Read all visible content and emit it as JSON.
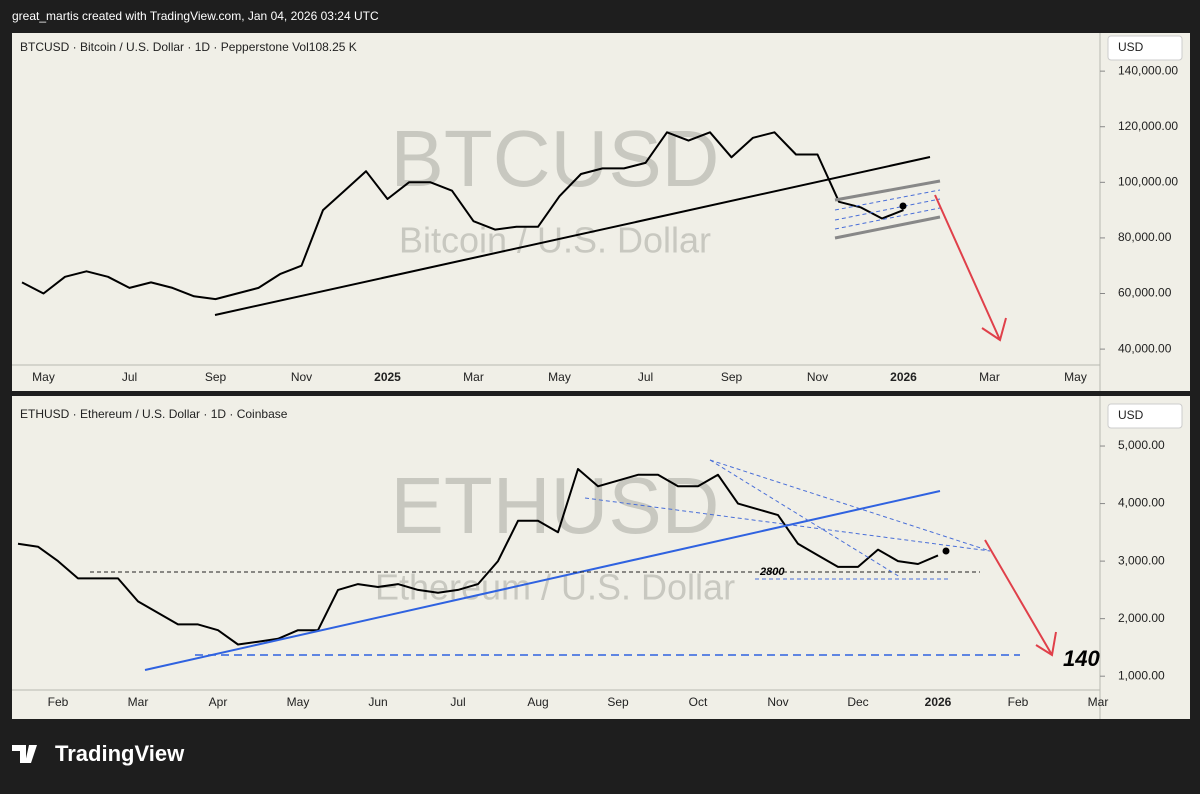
{
  "header": {
    "text": "great_martis created with TradingView.com, Jan 04, 2026 03:24 UTC"
  },
  "footer": {
    "logo": "TradingView"
  },
  "chart_data": [
    {
      "type": "line",
      "title": "BTCUSD · Bitcoin / U.S. Dollar · 1D · Pepperstone  Vol108.25 K",
      "watermark": "BTCUSD",
      "watermark_subtitle": "Bitcoin / U.S. Dollar",
      "unit_label": "USD",
      "color": "#000000",
      "categories": [
        null,
        "May",
        null,
        null,
        null,
        "Jul",
        null,
        null,
        null,
        "Sep",
        null,
        null,
        null,
        "Nov",
        null,
        null,
        null,
        "2025",
        null,
        null,
        null,
        "Mar",
        null,
        null,
        null,
        "May",
        null,
        null,
        null,
        "Jul",
        null,
        null,
        null,
        "Sep",
        null,
        null,
        null,
        "Nov",
        null,
        null,
        null,
        "2026",
        null,
        null,
        null,
        "Mar",
        null,
        null,
        null,
        "May",
        null
      ],
      "values": [
        64000,
        60000,
        66000,
        68000,
        66000,
        62000,
        64000,
        62000,
        59000,
        58000,
        60000,
        62000,
        67000,
        70000,
        90000,
        97000,
        104000,
        94000,
        100000,
        100000,
        97000,
        86000,
        83000,
        84000,
        84000,
        95000,
        103000,
        105000,
        105000,
        107000,
        118000,
        115000,
        118000,
        109000,
        116000,
        118000,
        110000,
        110000,
        93000,
        91000,
        87000,
        90000,
        null,
        null,
        null,
        null,
        null,
        null,
        null,
        null,
        null
      ],
      "ylim": [
        35000,
        153000
      ],
      "yticks": [
        {
          "value": 140000,
          "label": "140,000.00"
        },
        {
          "value": 120000,
          "label": "120,000.00"
        },
        {
          "value": 100000,
          "label": "100,000.00"
        },
        {
          "value": 80000,
          "label": "80,000.00"
        },
        {
          "value": 60000,
          "label": "60,000.00"
        },
        {
          "value": 40000,
          "label": "40,000.00"
        }
      ]
    },
    {
      "type": "line",
      "title": "ETHUSD · Ethereum / U.S. Dollar · 1D · Coinbase",
      "watermark": "ETHUSD",
      "watermark_subtitle": "Ethereum / U.S. Dollar",
      "unit_label": "USD",
      "color": "#000000",
      "categories": [
        null,
        null,
        "Feb",
        null,
        null,
        null,
        "Mar",
        null,
        null,
        null,
        "Apr",
        null,
        null,
        null,
        "May",
        null,
        null,
        null,
        "Jun",
        null,
        null,
        null,
        "Jul",
        null,
        null,
        null,
        "Aug",
        null,
        null,
        null,
        "Sep",
        null,
        null,
        null,
        "Oct",
        null,
        null,
        null,
        "Nov",
        null,
        null,
        null,
        "Dec",
        null,
        null,
        null,
        "2026",
        null,
        null,
        null,
        "Feb",
        null,
        null,
        null,
        "Mar",
        null
      ],
      "values": [
        3300,
        3250,
        3000,
        2700,
        2700,
        2700,
        2300,
        2100,
        1900,
        1900,
        1800,
        1550,
        1600,
        1650,
        1800,
        1800,
        2500,
        2600,
        2550,
        2600,
        2500,
        2450,
        2500,
        2600,
        3000,
        3700,
        3700,
        3500,
        4600,
        4300,
        4400,
        4500,
        4500,
        4300,
        4300,
        4500,
        4000,
        3900,
        3800,
        3300,
        3100,
        2900,
        2900,
        3200,
        3000,
        2950,
        3100,
        null,
        null,
        null,
        null,
        null,
        null,
        null,
        null,
        null
      ],
      "ylim": [
        760,
        5800
      ],
      "yticks": [
        {
          "value": 5000,
          "label": "5,000.00"
        },
        {
          "value": 4000,
          "label": "4,000.00"
        },
        {
          "value": 3000,
          "label": "3,000.00"
        },
        {
          "value": 2000,
          "label": "2,000.00"
        },
        {
          "value": 1000,
          "label": "1,000.00"
        }
      ],
      "annotations": [
        "2800",
        "140"
      ]
    }
  ]
}
